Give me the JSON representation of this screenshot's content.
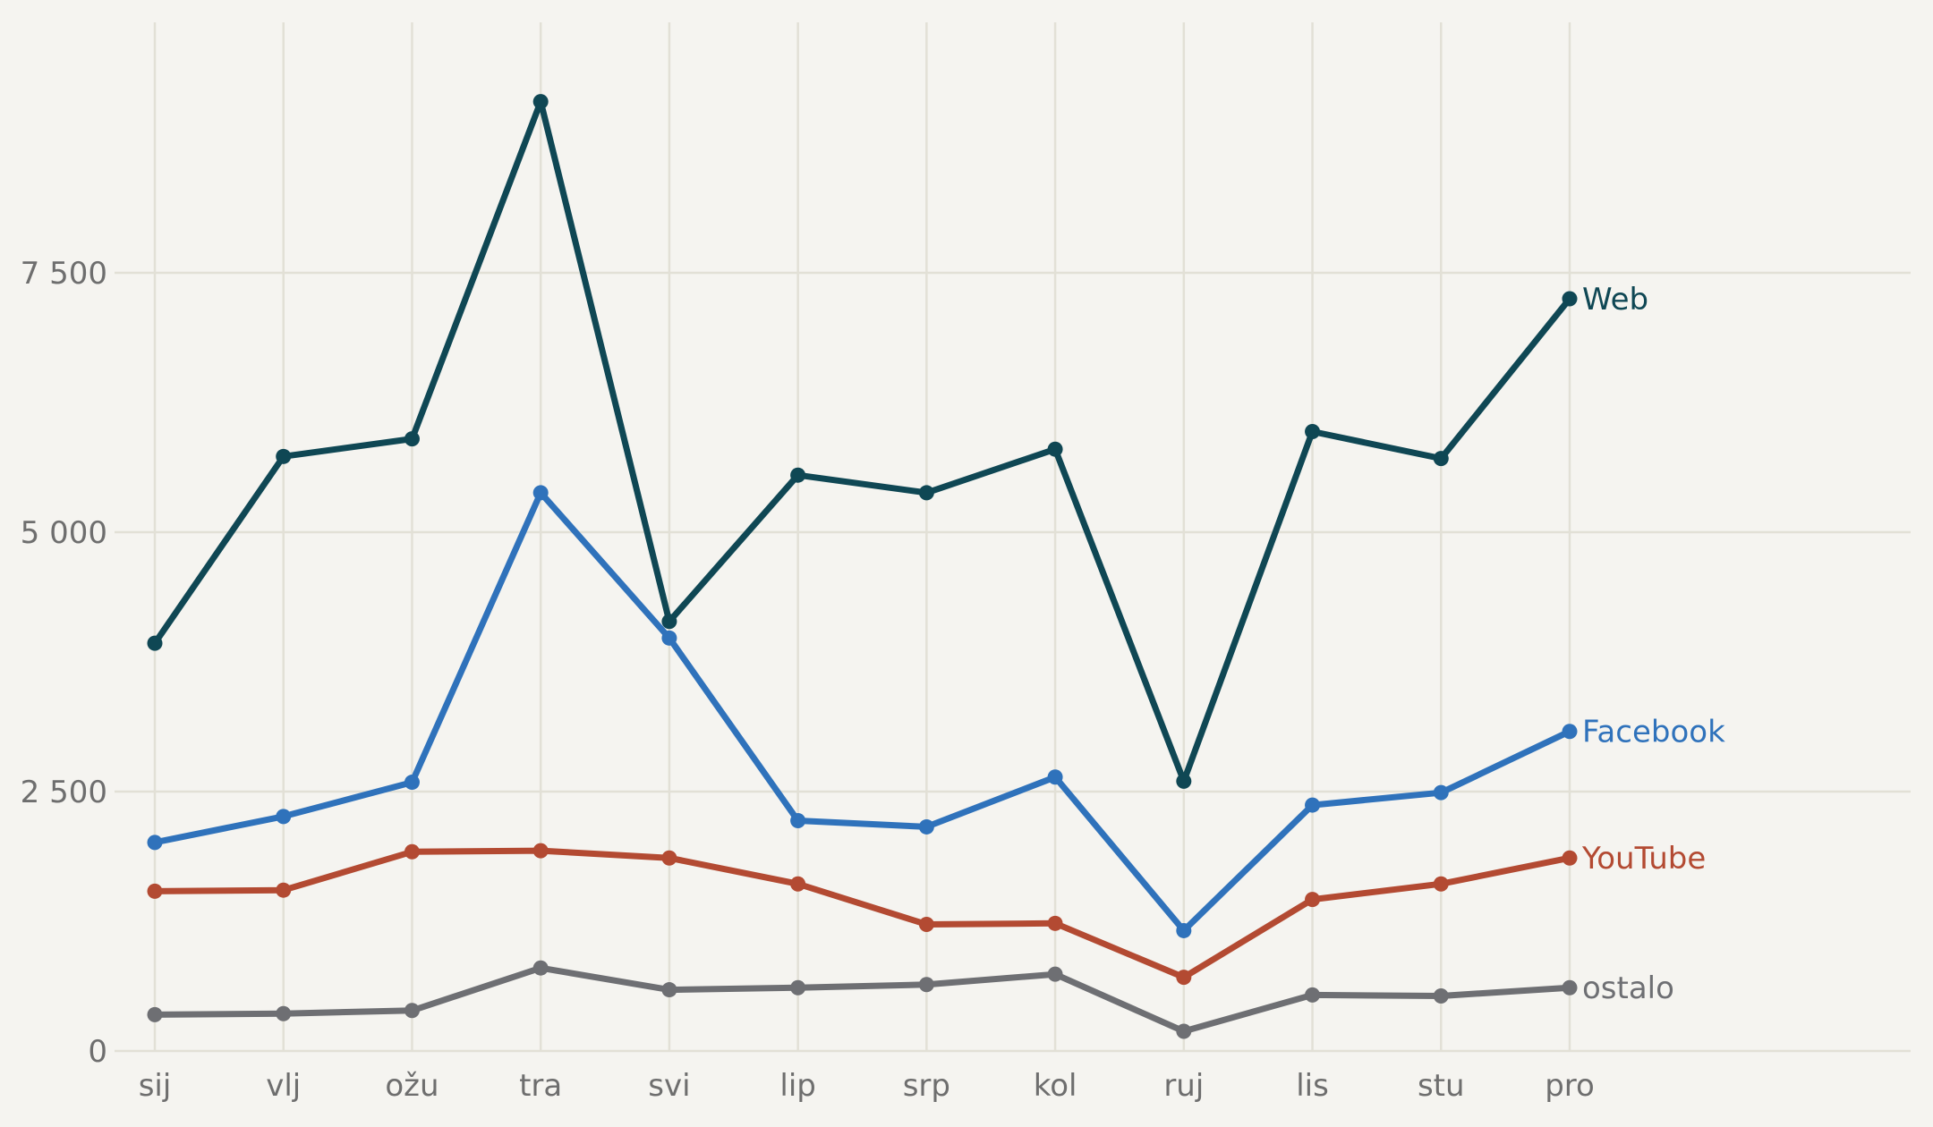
{
  "chart_data": {
    "type": "line",
    "categories": [
      "sij",
      "vlj",
      "ožu",
      "tra",
      "svi",
      "lip",
      "srp",
      "kol",
      "ruj",
      "lis",
      "stu",
      "pro"
    ],
    "ylim": [
      0,
      9700
    ],
    "yticks": [
      0,
      2500,
      5000,
      7500
    ],
    "ytick_labels": [
      "0",
      "2 500",
      "5 000",
      "7 500"
    ],
    "grid": true,
    "legend": "direct labels at line ends",
    "series": [
      {
        "name": "Web",
        "color": "#0f4754",
        "values": [
          3930,
          5730,
          5900,
          9150,
          4140,
          5550,
          5380,
          5800,
          2600,
          5970,
          5710,
          7250
        ]
      },
      {
        "name": "Facebook",
        "color": "#2f72bb",
        "values": [
          2010,
          2260,
          2590,
          5380,
          3980,
          2220,
          2160,
          2640,
          1160,
          2370,
          2490,
          3080
        ]
      },
      {
        "name": "YouTube",
        "color": "#b34a32",
        "values": [
          1540,
          1550,
          1920,
          1930,
          1860,
          1610,
          1220,
          1230,
          710,
          1460,
          1610,
          1860
        ]
      },
      {
        "name": "ostalo",
        "color": "#6e6f73",
        "values": [
          350,
          360,
          390,
          800,
          590,
          610,
          640,
          740,
          190,
          540,
          530,
          610
        ]
      }
    ]
  }
}
